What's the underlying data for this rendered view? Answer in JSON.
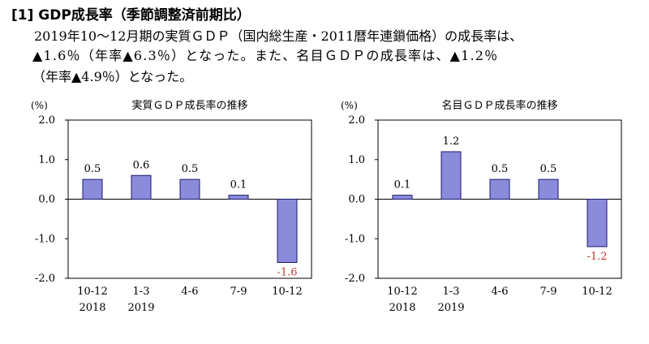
{
  "heading": "[1] GDP成長率（季節調整済前期比）",
  "paragraph": {
    "line1": "2019年10～12月期の実質ＧＤＰ（国内総生産・2011暦年連鎖価格）の成長率は、",
    "line2": "▲1.6％（年率▲6.3％）となった。また、名目ＧＤＰの成長率は、▲1.2％",
    "line3": "（年率▲4.9％）となった。"
  },
  "colors": {
    "bar_fill": "#8b8bdc",
    "bar_stroke": "#1a1a6e",
    "negative_label": "#c0392b"
  },
  "chart_data": [
    {
      "type": "bar",
      "title": "実質ＧＤＰ成長率の推移",
      "ylabel": "(%)",
      "ylim": [
        -2.0,
        2.0
      ],
      "yticks": [
        "2.0",
        "1.0",
        "0.0",
        "-1.0",
        "-2.0"
      ],
      "categories": [
        "10-12",
        "1-3",
        "4-6",
        "7-9",
        "10-12"
      ],
      "category_years": [
        "2018",
        "2019",
        "",
        "",
        ""
      ],
      "values": [
        0.5,
        0.6,
        0.5,
        0.1,
        -1.6
      ],
      "value_labels": [
        "0.5",
        "0.6",
        "0.5",
        "0.1",
        "-1.6"
      ]
    },
    {
      "type": "bar",
      "title": "名目ＧＤＰ成長率の推移",
      "ylabel": "(%)",
      "ylim": [
        -2.0,
        2.0
      ],
      "yticks": [
        "2.0",
        "1.0",
        "0.0",
        "-1.0",
        "-2.0"
      ],
      "categories": [
        "10-12",
        "1-3",
        "4-6",
        "7-9",
        "10-12"
      ],
      "category_years": [
        "2018",
        "2019",
        "",
        "",
        ""
      ],
      "values": [
        0.1,
        1.2,
        0.5,
        0.5,
        -1.2
      ],
      "value_labels": [
        "0.1",
        "1.2",
        "0.5",
        "0.5",
        "-1.2"
      ]
    }
  ]
}
